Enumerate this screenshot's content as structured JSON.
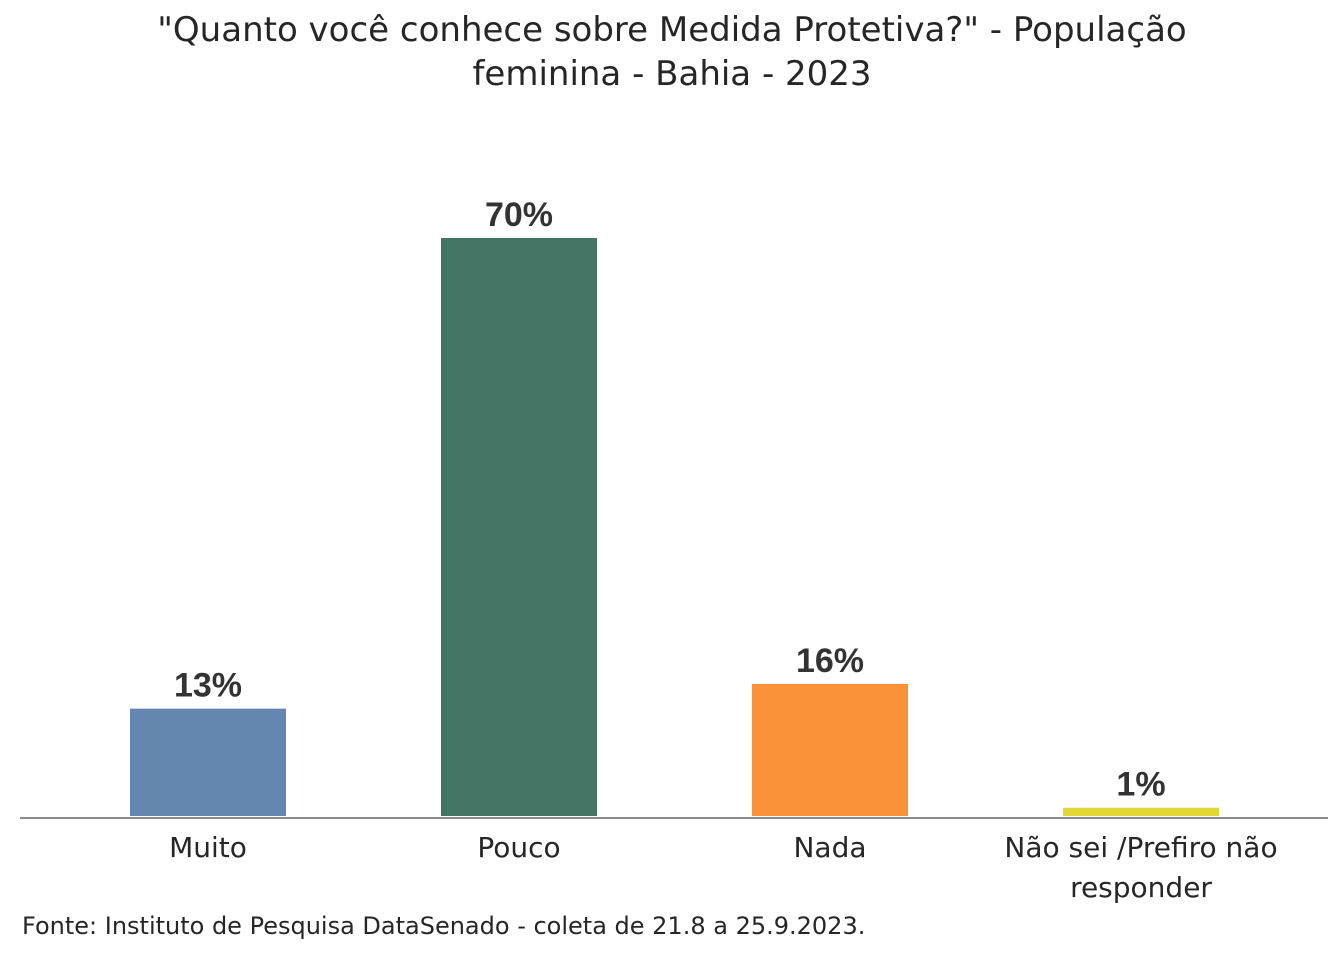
{
  "chart_data": {
    "type": "bar",
    "title_lines": [
      "\"Quanto você conhece sobre Medida Protetiva?\" - População",
      "feminina - Bahia - 2023"
    ],
    "categories": [
      [
        "Muito"
      ],
      [
        "Pouco"
      ],
      [
        "Nada"
      ],
      [
        "Não sei /Prefiro não",
        "responder"
      ]
    ],
    "values": [
      13,
      70,
      16,
      1
    ],
    "value_labels": [
      "13%",
      "70%",
      "16%",
      "1%"
    ],
    "colors": [
      "#6586AE",
      "#447463",
      "#F99139",
      "#E2D737"
    ],
    "unit": "%",
    "ylim": [
      0,
      70
    ],
    "grid": false,
    "legend": "none",
    "source": "Fonte: Instituto de Pesquisa DataSenado - coleta de 21.8 a 25.9.2023."
  }
}
